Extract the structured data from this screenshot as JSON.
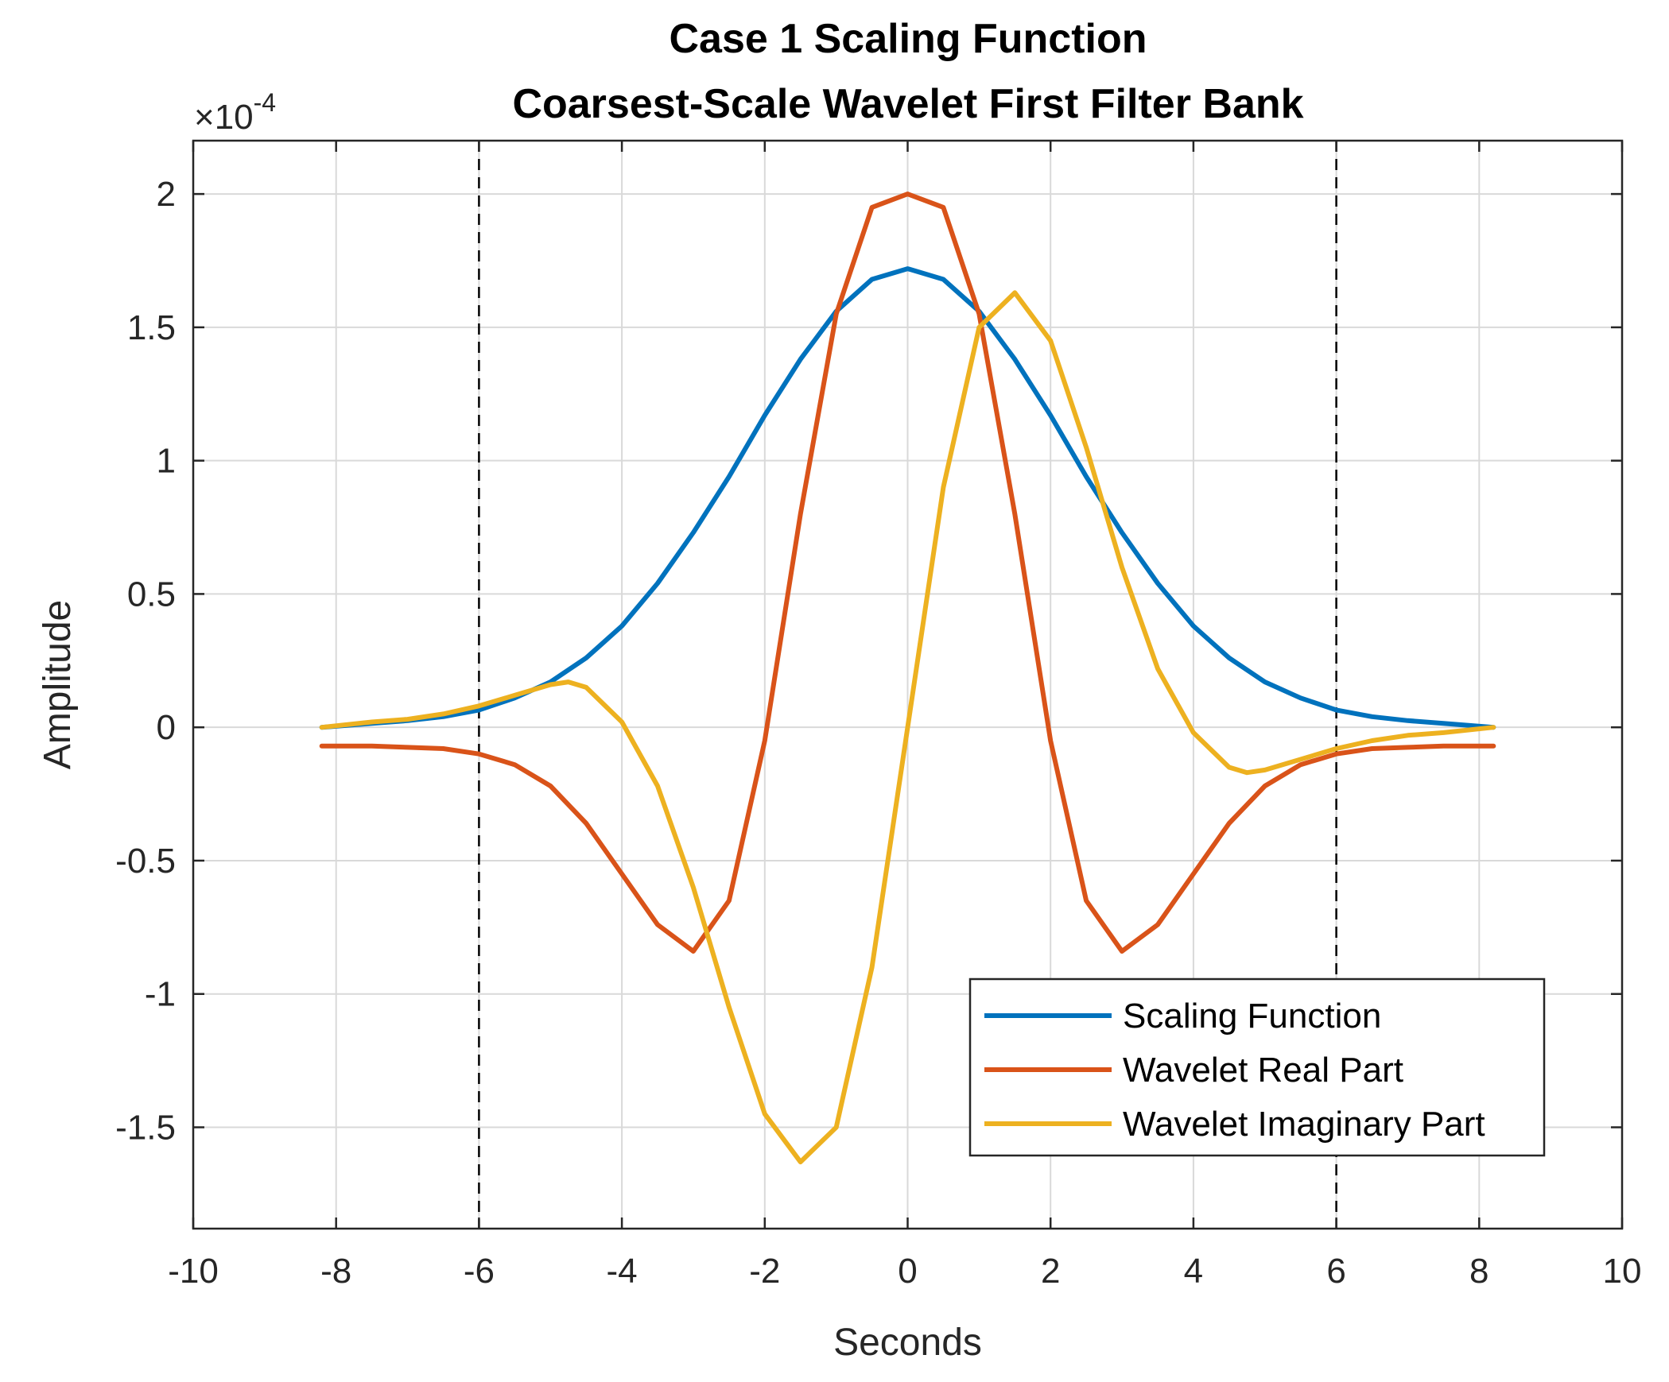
{
  "chart_data": {
    "type": "line",
    "title": [
      "Case 1 Scaling Function",
      "Coarsest-Scale Wavelet First Filter Bank"
    ],
    "xlabel": "Seconds",
    "ylabel": "Amplitude",
    "exponent_label": {
      "base": "×10",
      "power": "-4"
    },
    "xlim": [
      -10,
      10
    ],
    "ylim": [
      -1.88,
      2.2
    ],
    "xticks": [
      -10,
      -8,
      -6,
      -4,
      -2,
      0,
      2,
      4,
      6,
      8,
      10
    ],
    "xtick_labels": [
      "-10",
      "-8",
      "-6",
      "-4",
      "-2",
      "0",
      "2",
      "4",
      "6",
      "8",
      "10"
    ],
    "yticks": [
      -1.5,
      -1,
      -0.5,
      0,
      0.5,
      1,
      1.5,
      2
    ],
    "ytick_labels": [
      "-1.5",
      "-1",
      "-0.5",
      "0",
      "0.5",
      "1",
      "1.5",
      "2"
    ],
    "grid": true,
    "vlines": [
      -6,
      6
    ],
    "legend_position": "bottom-right",
    "series": [
      {
        "name": "Scaling Function",
        "color": "#0072BD",
        "x": [
          -8.2,
          -7.5,
          -7.0,
          -6.5,
          -6.0,
          -5.5,
          -5.0,
          -4.5,
          -4.0,
          -3.5,
          -3.0,
          -2.5,
          -2.0,
          -1.5,
          -1.0,
          -0.5,
          0.0,
          0.5,
          1.0,
          1.5,
          2.0,
          2.5,
          3.0,
          3.5,
          4.0,
          4.5,
          5.0,
          5.5,
          6.0,
          6.5,
          7.0,
          7.5,
          8.2
        ],
        "y": [
          0.0,
          0.015,
          0.025,
          0.04,
          0.065,
          0.11,
          0.17,
          0.26,
          0.38,
          0.54,
          0.73,
          0.94,
          1.17,
          1.38,
          1.56,
          1.68,
          1.72,
          1.68,
          1.56,
          1.38,
          1.17,
          0.94,
          0.73,
          0.54,
          0.38,
          0.26,
          0.17,
          0.11,
          0.065,
          0.04,
          0.025,
          0.015,
          0.0
        ]
      },
      {
        "name": "Wavelet Real Part",
        "color": "#D95319",
        "x": [
          -8.2,
          -7.5,
          -7.0,
          -6.5,
          -6.0,
          -5.5,
          -5.0,
          -4.5,
          -4.0,
          -3.5,
          -3.0,
          -2.5,
          -2.0,
          -1.5,
          -1.0,
          -0.5,
          0.0,
          0.5,
          1.0,
          1.5,
          2.0,
          2.5,
          3.0,
          3.5,
          4.0,
          4.5,
          5.0,
          5.5,
          6.0,
          6.5,
          7.0,
          7.5,
          8.2
        ],
        "y": [
          -0.07,
          -0.07,
          -0.075,
          -0.08,
          -0.1,
          -0.14,
          -0.22,
          -0.36,
          -0.55,
          -0.74,
          -0.84,
          -0.65,
          -0.05,
          0.8,
          1.55,
          1.95,
          2.0,
          1.95,
          1.55,
          0.8,
          -0.05,
          -0.65,
          -0.84,
          -0.74,
          -0.55,
          -0.36,
          -0.22,
          -0.14,
          -0.1,
          -0.08,
          -0.075,
          -0.07,
          -0.07
        ]
      },
      {
        "name": "Wavelet Imaginary Part",
        "color": "#EDB120",
        "x": [
          -8.2,
          -7.5,
          -7.0,
          -6.5,
          -6.0,
          -5.5,
          -5.0,
          -4.75,
          -4.5,
          -4.0,
          -3.5,
          -3.0,
          -2.5,
          -2.0,
          -1.5,
          -1.0,
          -0.5,
          0.0,
          0.5,
          1.0,
          1.5,
          2.0,
          2.5,
          3.0,
          3.5,
          4.0,
          4.5,
          4.75,
          5.0,
          5.5,
          6.0,
          6.5,
          7.0,
          7.5,
          8.2
        ],
        "y": [
          0.0,
          0.02,
          0.03,
          0.05,
          0.08,
          0.12,
          0.16,
          0.17,
          0.15,
          0.02,
          -0.22,
          -0.6,
          -1.05,
          -1.45,
          -1.63,
          -1.5,
          -0.9,
          0.0,
          0.9,
          1.5,
          1.63,
          1.45,
          1.05,
          0.6,
          0.22,
          -0.02,
          -0.15,
          -0.17,
          -0.16,
          -0.12,
          -0.08,
          -0.05,
          -0.03,
          -0.02,
          0.0
        ]
      }
    ]
  }
}
